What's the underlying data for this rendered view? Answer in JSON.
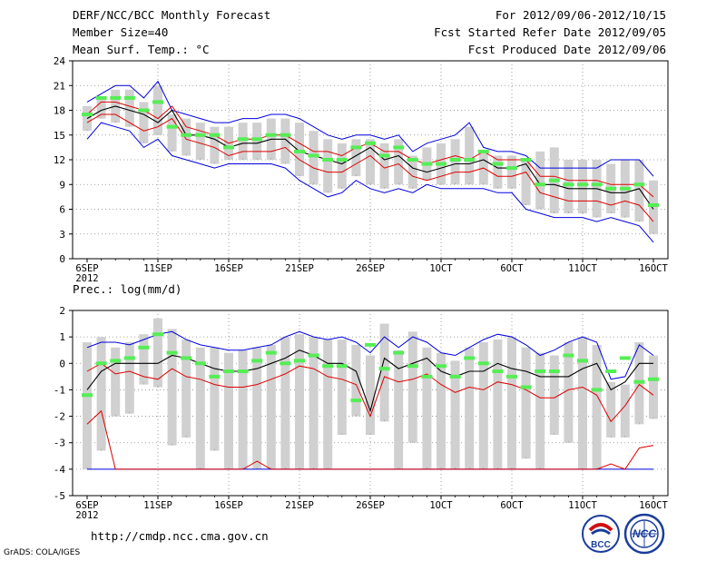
{
  "header": {
    "title": "DERF/NCC/BCC Monthly Forecast",
    "member": "Member Size=40",
    "variable": "Mean Surf. Temp.: °C",
    "period": "For 2012/09/06-2012/10/15",
    "started": "Fcst Started Refer Date 2012/09/05",
    "produced": "Fcst Produced Date 2012/09/06"
  },
  "footer": {
    "url": "http://cmdp.ncc.cma.gov.cn",
    "grads": "GrADS: COLA/IGES"
  },
  "logos": {
    "bcc_text": "BCC",
    "ncc_text": "NCC"
  },
  "colors": {
    "box": "#d0d0d0",
    "median": "#000000",
    "inner_band": "#dd0000",
    "outer_band": "#0000dd",
    "observed": "#55ee55",
    "grid": "#888888"
  },
  "chart_data": [
    {
      "type": "box-band",
      "title": "Mean Surf. Temp.: °C",
      "xlabel": "",
      "ylabel": "°C",
      "ylim": [
        0,
        24
      ],
      "yticks": [
        0,
        3,
        6,
        9,
        12,
        15,
        18,
        21,
        24
      ],
      "xtick_labels": [
        "6SEP\n2012",
        "11SEP",
        "16SEP",
        "21SEP",
        "26SEP",
        "1OCT",
        "6OCT",
        "11OCT",
        "16OCT"
      ],
      "days": 41,
      "median": [
        17.0,
        18.0,
        18.5,
        18.0,
        17.5,
        16.5,
        18.0,
        15.0,
        15.0,
        14.5,
        13.5,
        14.0,
        14.0,
        14.5,
        14.5,
        13.0,
        12.5,
        12.0,
        11.5,
        12.5,
        13.5,
        12.0,
        12.5,
        11.0,
        10.5,
        11.0,
        11.5,
        11.5,
        12.0,
        11.0,
        11.0,
        11.5,
        9.0,
        9.0,
        8.5,
        8.5,
        8.5,
        8.0,
        8.0,
        8.5,
        6.0
      ],
      "red_upper": [
        17.5,
        19.0,
        19.0,
        18.5,
        18.0,
        17.0,
        18.5,
        16.0,
        15.5,
        15.0,
        14.0,
        14.5,
        14.5,
        15.0,
        15.0,
        14.0,
        13.0,
        13.0,
        12.5,
        13.5,
        14.0,
        13.0,
        13.0,
        12.0,
        11.5,
        12.0,
        12.5,
        12.0,
        13.0,
        12.0,
        12.0,
        12.0,
        10.0,
        10.0,
        9.5,
        9.5,
        9.5,
        9.0,
        9.0,
        9.0,
        7.5
      ],
      "red_lower": [
        16.5,
        17.5,
        17.5,
        16.5,
        15.5,
        16.0,
        17.0,
        14.5,
        14.0,
        13.5,
        12.5,
        13.0,
        13.0,
        13.0,
        13.5,
        12.0,
        11.0,
        10.5,
        10.5,
        11.5,
        12.5,
        11.0,
        11.5,
        10.0,
        9.5,
        10.0,
        10.5,
        10.5,
        11.0,
        10.0,
        10.0,
        10.5,
        8.0,
        7.5,
        7.0,
        7.0,
        7.0,
        6.5,
        7.0,
        6.5,
        4.5
      ],
      "blue_upper": [
        19.0,
        20.0,
        21.0,
        21.0,
        19.5,
        21.5,
        18.0,
        17.5,
        17.0,
        16.5,
        16.5,
        17.0,
        17.0,
        17.5,
        17.5,
        17.0,
        16.0,
        15.0,
        14.5,
        15.0,
        15.0,
        14.5,
        15.0,
        13.0,
        14.0,
        14.5,
        15.0,
        16.5,
        13.5,
        13.0,
        13.0,
        12.5,
        11.0,
        11.0,
        11.0,
        11.0,
        11.0,
        12.0,
        12.0,
        12.0,
        10.0
      ],
      "blue_lower": [
        14.5,
        16.5,
        16.0,
        15.5,
        13.5,
        14.5,
        12.5,
        12.0,
        11.5,
        11.0,
        11.5,
        11.5,
        11.5,
        11.5,
        11.0,
        9.5,
        8.5,
        7.5,
        8.0,
        9.5,
        8.5,
        8.0,
        8.5,
        8.0,
        9.0,
        8.5,
        8.5,
        8.5,
        8.5,
        8.0,
        8.0,
        6.0,
        5.5,
        5.0,
        5.0,
        5.0,
        4.5,
        5.0,
        4.5,
        4.0,
        2.0
      ],
      "box_top": [
        18.5,
        19.5,
        20.5,
        20.5,
        19.0,
        21.0,
        17.5,
        17.0,
        16.5,
        16.0,
        16.0,
        16.5,
        16.5,
        17.0,
        17.0,
        16.5,
        15.5,
        14.5,
        14.0,
        14.5,
        14.5,
        14.0,
        14.5,
        12.5,
        13.5,
        14.0,
        14.5,
        16.0,
        13.0,
        12.5,
        12.5,
        12.0,
        13.0,
        13.5,
        12.0,
        12.0,
        12.0,
        11.5,
        12.0,
        12.0,
        9.5
      ],
      "box_bot": [
        15.5,
        17.0,
        16.5,
        16.0,
        14.0,
        15.0,
        13.0,
        12.5,
        12.0,
        11.5,
        12.0,
        12.0,
        12.0,
        12.0,
        11.5,
        10.0,
        9.0,
        8.0,
        8.5,
        10.0,
        9.0,
        8.5,
        9.0,
        8.5,
        9.5,
        9.0,
        9.0,
        9.0,
        9.0,
        8.5,
        8.5,
        6.5,
        6.0,
        5.5,
        5.5,
        5.5,
        5.0,
        5.5,
        5.0,
        4.5,
        3.0
      ],
      "observed": [
        17.5,
        19.5,
        19.5,
        19.5,
        18.0,
        19.0,
        16.0,
        15.0,
        15.0,
        15.0,
        13.5,
        14.5,
        14.5,
        15.0,
        15.0,
        13.0,
        12.5,
        12.0,
        12.0,
        13.5,
        14.0,
        12.5,
        13.5,
        12.0,
        11.5,
        11.5,
        12.0,
        12.0,
        13.0,
        11.5,
        11.0,
        12.0,
        9.0,
        9.5,
        9.0,
        9.0,
        9.0,
        8.5,
        8.5,
        9.0,
        6.5
      ]
    },
    {
      "type": "box-band",
      "title": "Prec.: log(mm/d)",
      "xlabel": "",
      "ylabel": "log(mm/d)",
      "ylim": [
        -5,
        2
      ],
      "yticks": [
        -5,
        -4,
        -3,
        -2,
        -1,
        0,
        1,
        2
      ],
      "xtick_labels": [
        "6SEP\n2012",
        "11SEP",
        "16SEP",
        "21SEP",
        "26SEP",
        "1OCT",
        "6OCT",
        "11OCT",
        "16OCT"
      ],
      "days": 41,
      "median": [
        -1.0,
        -0.3,
        0.0,
        0.0,
        0.0,
        0.0,
        0.3,
        0.2,
        0.0,
        -0.2,
        -0.3,
        -0.3,
        -0.2,
        0.0,
        0.2,
        0.5,
        0.3,
        0.0,
        0.0,
        -0.3,
        -1.8,
        0.2,
        -0.2,
        0.0,
        0.2,
        -0.3,
        -0.5,
        -0.3,
        -0.3,
        0.0,
        -0.2,
        -0.3,
        -0.5,
        -0.5,
        -0.5,
        -0.2,
        0.0,
        -1.0,
        -0.7,
        0.0,
        0.0
      ],
      "red_upper": [
        -2.3,
        -1.8,
        -4.0,
        -4.0,
        -4.0,
        -4.0,
        -4.0,
        -4.0,
        -4.0,
        -4.0,
        -4.0,
        -4.0,
        -3.7,
        -4.0,
        -4.0,
        -4.0,
        -4.0,
        -4.0,
        -4.0,
        -4.0,
        -4.0,
        -4.0,
        -4.0,
        -4.0,
        -4.0,
        -4.0,
        -4.0,
        -4.0,
        -4.0,
        -4.0,
        -4.0,
        -4.0,
        -4.0,
        -4.0,
        -4.0,
        -4.0,
        -4.0,
        -3.8,
        -4.0,
        -3.2,
        -3.1
      ],
      "red_lower": [
        -0.3,
        0.0,
        -0.4,
        -0.3,
        -0.5,
        -0.6,
        -0.2,
        -0.5,
        -0.6,
        -0.8,
        -0.9,
        -0.9,
        -0.8,
        -0.6,
        -0.4,
        -0.1,
        -0.2,
        -0.5,
        -0.6,
        -0.8,
        -2.0,
        -0.5,
        -0.7,
        -0.6,
        -0.4,
        -0.8,
        -1.1,
        -0.9,
        -1.0,
        -0.7,
        -0.8,
        -1.0,
        -1.3,
        -1.3,
        -1.0,
        -0.9,
        -1.2,
        -2.2,
        -1.6,
        -0.8,
        -1.2
      ],
      "blue_upper": [
        0.6,
        0.8,
        0.8,
        0.7,
        0.9,
        1.1,
        1.2,
        0.9,
        0.7,
        0.6,
        0.5,
        0.5,
        0.6,
        0.7,
        1.0,
        1.2,
        1.0,
        0.9,
        1.0,
        0.8,
        0.4,
        1.0,
        0.6,
        1.0,
        0.8,
        0.4,
        0.3,
        0.6,
        0.9,
        1.1,
        1.0,
        0.7,
        0.3,
        0.5,
        0.8,
        1.0,
        0.8,
        -0.6,
        -0.5,
        0.7,
        0.3
      ],
      "blue_lower": [
        -4.0,
        -4.0,
        -4.0,
        -4.0,
        -4.0,
        -4.0,
        -4.0,
        -4.0,
        -4.0,
        -4.0,
        -4.0,
        -4.0,
        -4.0,
        -4.0,
        -4.0,
        -4.0,
        -4.0,
        -4.0,
        -4.0,
        -4.0,
        -4.0,
        -4.0,
        -4.0,
        -4.0,
        -4.0,
        -4.0,
        -4.0,
        -4.0,
        -4.0,
        -4.0,
        -4.0,
        -4.0,
        -4.0,
        -4.0,
        -4.0,
        -4.0,
        -4.0,
        -4.0,
        -4.0,
        -4.0,
        -4.0
      ],
      "box_top": [
        0.8,
        1.0,
        0.6,
        0.8,
        1.1,
        1.7,
        1.3,
        0.9,
        0.6,
        0.6,
        0.4,
        0.5,
        0.6,
        0.7,
        1.0,
        1.1,
        1.0,
        0.9,
        0.9,
        0.7,
        0.3,
        1.5,
        0.5,
        1.2,
        0.6,
        0.4,
        0.1,
        0.6,
        0.8,
        0.9,
        1.0,
        0.6,
        0.4,
        0.3,
        0.8,
        1.0,
        0.7,
        -0.7,
        -0.8,
        0.8,
        0.3
      ],
      "box_bot": [
        -4.0,
        -3.3,
        -2.0,
        -1.9,
        -0.8,
        -0.9,
        -3.1,
        -2.8,
        -4.0,
        -3.3,
        -4.0,
        -4.0,
        -4.0,
        -4.0,
        -4.0,
        -4.0,
        -4.0,
        -4.0,
        -2.7,
        -2.0,
        -2.7,
        -2.2,
        -4.0,
        -3.0,
        -4.0,
        -4.0,
        -4.0,
        -4.0,
        -4.0,
        -4.0,
        -4.0,
        -3.6,
        -4.0,
        -2.7,
        -3.0,
        -4.0,
        -4.0,
        -2.8,
        -2.8,
        -2.3,
        -2.1
      ],
      "observed": [
        -1.2,
        0.0,
        0.1,
        0.2,
        0.6,
        1.1,
        0.4,
        0.2,
        0.0,
        -0.5,
        -0.3,
        -0.3,
        0.1,
        0.4,
        0.0,
        0.1,
        0.3,
        -0.1,
        -0.1,
        -1.4,
        0.7,
        -0.2,
        0.4,
        -0.1,
        -0.5,
        -0.1,
        -0.5,
        0.2,
        0.0,
        -0.3,
        -0.5,
        -0.9,
        -0.3,
        -0.3,
        0.3,
        0.1,
        -1.0,
        -0.3,
        0.2,
        -0.7,
        -0.6
      ]
    }
  ]
}
